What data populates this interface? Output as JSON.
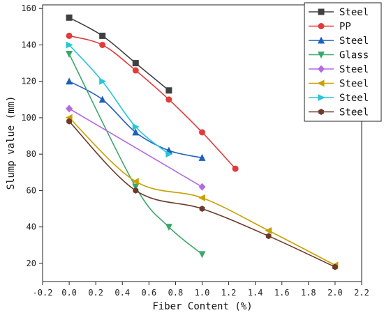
{
  "chart_data": {
    "type": "line",
    "xlabel": "Fiber Content (%)",
    "ylabel": "Slump value (mm)",
    "xlim": [
      -0.2,
      2.2
    ],
    "ylim": [
      10,
      162
    ],
    "xticks": [
      "-0.2",
      "0.0",
      "0.2",
      "0.4",
      "0.6",
      "0.8",
      "1.0",
      "1.2",
      "1.4",
      "1.6",
      "1.8",
      "2.0",
      "2.2"
    ],
    "yticks": [
      "20",
      "40",
      "60",
      "80",
      "100",
      "120",
      "140",
      "160"
    ],
    "grid": false,
    "legend_position": "top-right",
    "series": [
      {
        "name": "Steel",
        "color": "#404040",
        "marker": "square",
        "x": [
          0,
          0.25,
          0.5,
          0.75
        ],
        "y": [
          155,
          145,
          130,
          115
        ]
      },
      {
        "name": "PP",
        "color": "#e03c3c",
        "marker": "circle",
        "x": [
          0,
          0.25,
          0.5,
          0.75,
          1.0,
          1.25
        ],
        "y": [
          145,
          140,
          126,
          110,
          92,
          72
        ]
      },
      {
        "name": "Steel",
        "color": "#1f5fbf",
        "marker": "triangle-up",
        "x": [
          0,
          0.25,
          0.5,
          0.75,
          1.0
        ],
        "y": [
          120,
          110,
          92,
          82,
          78
        ]
      },
      {
        "name": "Glass",
        "color": "#3aa86b",
        "marker": "triangle-down",
        "x": [
          0,
          0.5,
          0.75,
          1.0
        ],
        "y": [
          135,
          62,
          40,
          25
        ]
      },
      {
        "name": "Steel",
        "color": "#b36ae0",
        "marker": "diamond",
        "x": [
          0,
          1.0
        ],
        "y": [
          105,
          62
        ]
      },
      {
        "name": "Steel",
        "color": "#c8a000",
        "marker": "triangle-left",
        "x": [
          0,
          0.5,
          1.0,
          1.5,
          2.0
        ],
        "y": [
          100,
          65,
          56,
          38,
          19
        ]
      },
      {
        "name": "Steel",
        "color": "#26c6d6",
        "marker": "triangle-right",
        "x": [
          0,
          0.25,
          0.5,
          0.75
        ],
        "y": [
          140,
          120,
          95,
          80
        ]
      },
      {
        "name": "Steel",
        "color": "#6b3a2a",
        "marker": "hexagon",
        "x": [
          0,
          0.5,
          1.0,
          1.5,
          2.0
        ],
        "y": [
          98,
          60,
          50,
          35,
          18
        ]
      }
    ]
  }
}
